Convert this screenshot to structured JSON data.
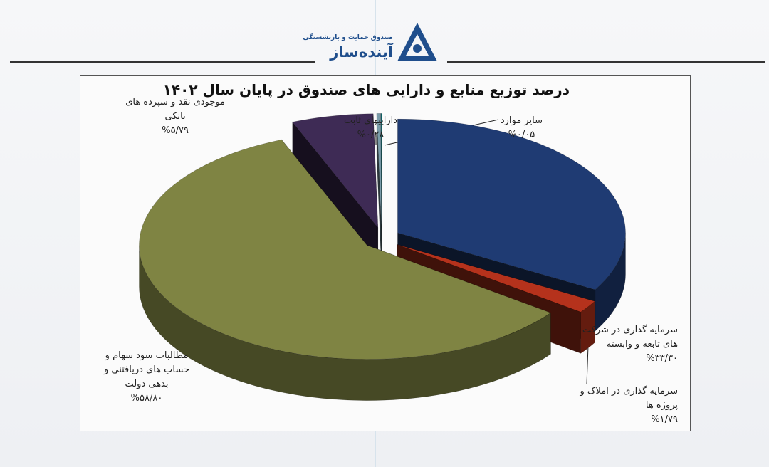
{
  "header": {
    "logo_subtitle": "صندوق حمایت و بازنشستگی",
    "logo_name": "آینده‌ساز"
  },
  "chart_data": {
    "type": "pie",
    "title": "درصد توزیع منابع و دارایی های صندوق در پایان سال ۱۴۰۲",
    "categories": [
      "سرمایه گذاری در شرکت های تابعه و وابسته",
      "سرمایه گذاری در املاک و پروژه ها",
      "مطالبات سود سهام و حساب های دریافتنی و بدهی دولت",
      "موجودی نقد و سپرده های بانکی",
      "داراییهای ثابت",
      "سایر موارد"
    ],
    "values": [
      33.3,
      1.79,
      58.8,
      5.79,
      0.28,
      0.05
    ],
    "colors": [
      "#1f3b73",
      "#b5321c",
      "#7f8443",
      "#3e2b55",
      "#7a9caa",
      "#0e6e72"
    ],
    "exploded": true,
    "three_d": true
  },
  "labels": [
    {
      "line1": "سرمایه گذاری در شرکت",
      "line2": "های تابعه و وابسته",
      "pct": "%۳۳/۳۰"
    },
    {
      "line1": "سرمایه گذاری در املاک و",
      "line2": "پروژه ها",
      "pct": "%۱/۷۹"
    },
    {
      "line1": "مطالبات سود سهام و",
      "line2": "حساب های دریافتنی و",
      "line3": "بدهی دولت",
      "pct": "%۵۸/۸۰"
    },
    {
      "line1": "موجودی نقد و سپرده های",
      "line2": "بانکی",
      "pct": "%۵/۷۹"
    },
    {
      "line1": "داراییهای ثابت",
      "pct": "%۰/۲۸"
    },
    {
      "line1": "سایر موارد",
      "pct": "%۰/۰۵"
    }
  ]
}
